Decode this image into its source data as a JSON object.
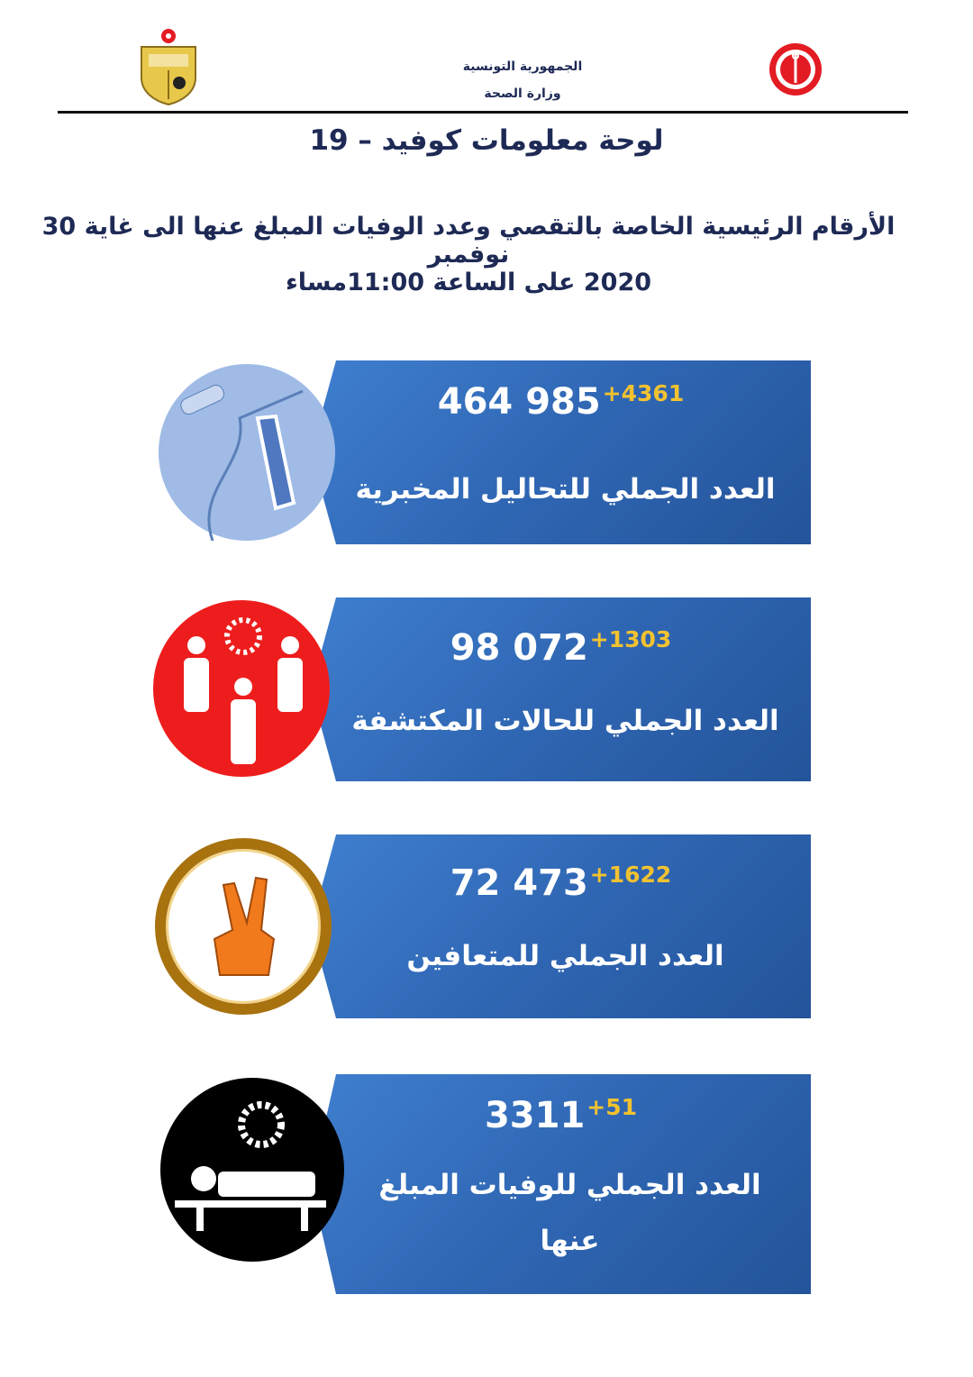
{
  "header": {
    "country": "الجمهورية التونسية",
    "ministry": "وزارة الصحة",
    "coat_of_arms_icon": "tunisia-coat-of-arms-icon",
    "ministry_logo_icon": "ministry-of-health-logo-icon"
  },
  "title": "لوحة معلومات كوفيد – 19",
  "subtitle_line1": "الأرقام الرئيسية الخاصة بالتقصي وعدد الوفيات المبلغ عنها الى غاية 30 نوفمبر",
  "subtitle_line2": "2020 على الساعة  11:00مساء",
  "cards": [
    {
      "total": "464 985",
      "delta": "+4361",
      "label": "العدد الجملي للتحاليل المخبرية",
      "icon": "swab-test-icon"
    },
    {
      "total": "98 072",
      "delta": "+1303",
      "label": "العدد  الجملي للحالات المكتشفة",
      "icon": "people-virus-icon"
    },
    {
      "total": "72 473",
      "delta": "+1622",
      "label": "العدد الجملي للمتعافين",
      "icon": "victory-hand-icon"
    },
    {
      "total": "3311",
      "delta": "+51",
      "label": "العدد الجملي للوفيات المبلغ عنها",
      "icon": "patient-bed-virus-icon"
    }
  ],
  "colors": {
    "card": "#2f66b3",
    "delta": "#f2c230",
    "title": "#1e2a55"
  }
}
